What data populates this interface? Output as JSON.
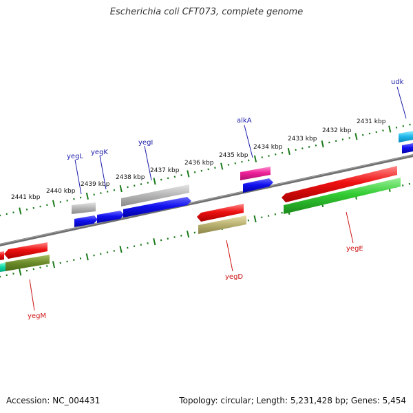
{
  "title": "Escherichia coli CFT073, complete genome",
  "footer": {
    "accession": "Accession: NC_004431",
    "stats": "Topology: circular; Length: 5,231,428 bp; Genes: 5,454"
  },
  "colors": {
    "backbone": "#777777",
    "tick": "#1a7a1a",
    "label_forward": "#1a1aaa",
    "label_reverse": "#cc1111"
  },
  "kbp_ticks": [
    "2441 kbp",
    "2440 kbp",
    "2439 kbp",
    "2438 kbp",
    "2437 kbp",
    "2436 kbp",
    "2435 kbp",
    "2434 kbp",
    "2433 kbp",
    "2432 kbp",
    "2431 kbp"
  ],
  "forward_labels": [
    {
      "name": "yegL"
    },
    {
      "name": "yegK"
    },
    {
      "name": "yegI"
    },
    {
      "name": "alkA"
    },
    {
      "name": "udk"
    }
  ],
  "reverse_labels": [
    {
      "name": "yegM"
    },
    {
      "name": "yegD"
    },
    {
      "name": "yegE"
    }
  ]
}
